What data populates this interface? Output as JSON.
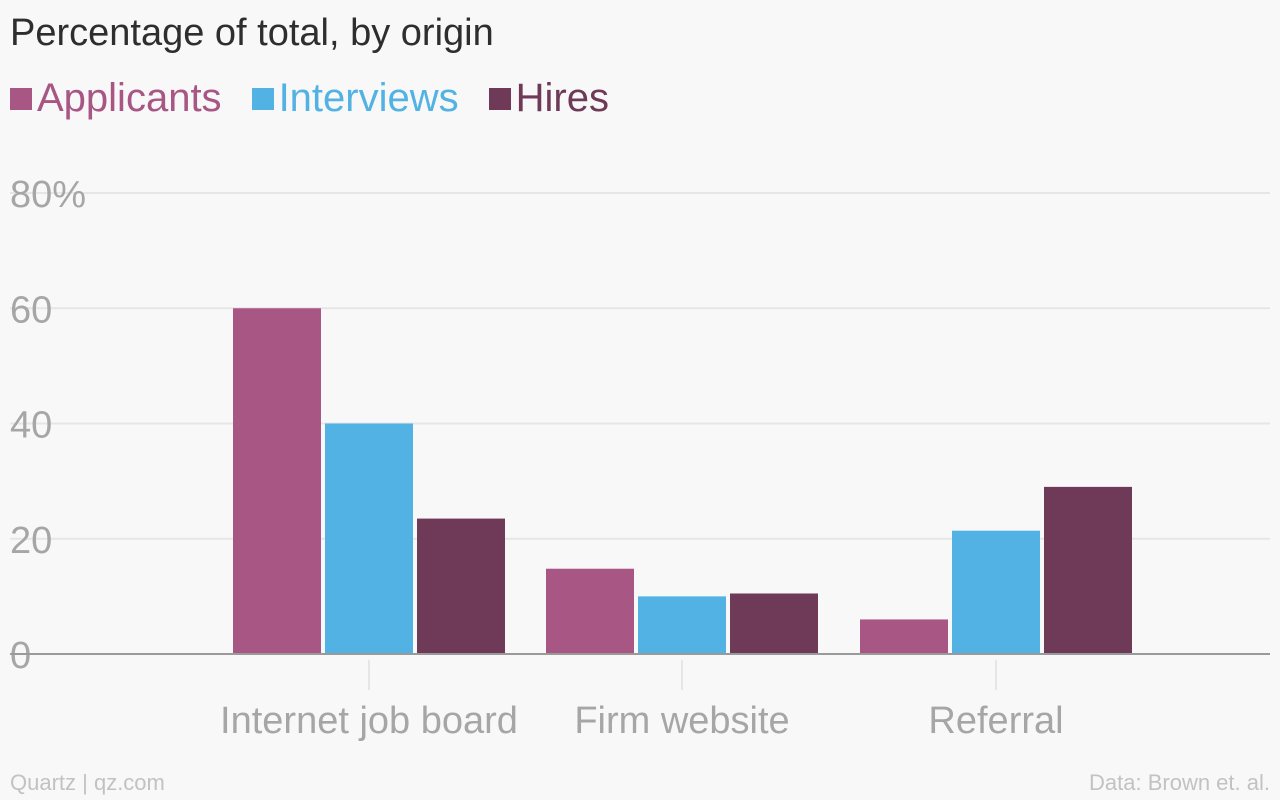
{
  "colors": {
    "applicants": "#a85684",
    "interviews": "#52b2e3",
    "hires": "#6e3a58",
    "grid": "#e6e6e6",
    "axis": "#9a9a9a",
    "tick_text": "#a6a6a6"
  },
  "chart_data": {
    "type": "bar",
    "title": "Percentage of total, by origin",
    "categories": [
      "Internet job board",
      "Firm website",
      "Referral"
    ],
    "series": [
      {
        "name": "Applicants",
        "values": [
          60,
          14.8,
          6
        ]
      },
      {
        "name": "Interviews",
        "values": [
          40,
          10,
          21.4
        ]
      },
      {
        "name": "Hires",
        "values": [
          23.5,
          10.5,
          29
        ]
      }
    ],
    "ylim": [
      0,
      80
    ],
    "yticks": [
      {
        "value": 80,
        "label": "80%"
      },
      {
        "value": 60,
        "label": "60"
      },
      {
        "value": 40,
        "label": "40"
      },
      {
        "value": 20,
        "label": "20"
      },
      {
        "value": 0,
        "label": "0"
      }
    ],
    "grid": true,
    "legend": "top-left",
    "xlabel": "",
    "ylabel": ""
  },
  "footer": {
    "source_left": "Quartz | qz.com",
    "source_right": "Data: Brown et. al."
  }
}
